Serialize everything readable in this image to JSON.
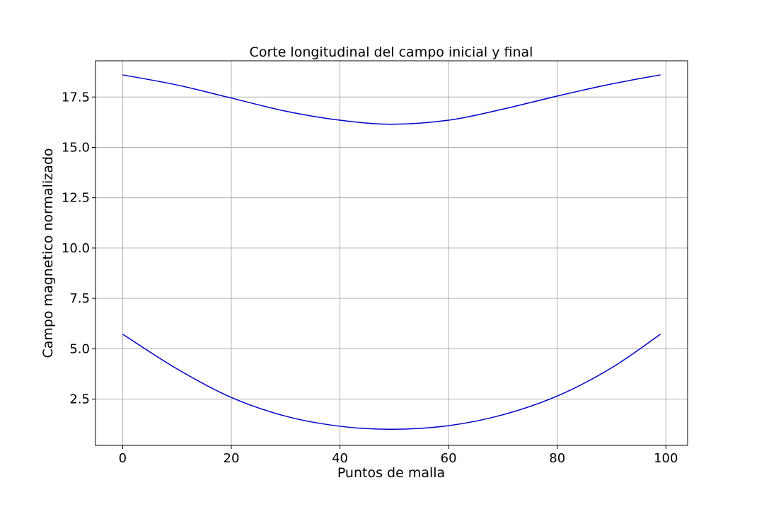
{
  "chart_data": {
    "type": "line",
    "title": "Corte longitudinal del campo inicial y final",
    "xlabel": "Puntos de malla",
    "ylabel": "Campo magnetico normalizado",
    "xlim": [
      -5,
      104
    ],
    "ylim": [
      0.2,
      19.3
    ],
    "xticks": [
      0,
      20,
      40,
      60,
      80,
      100
    ],
    "xtick_labels": [
      "0",
      "20",
      "40",
      "60",
      "80",
      "100"
    ],
    "yticks": [
      2.5,
      5.0,
      7.5,
      10.0,
      12.5,
      15.0,
      17.5
    ],
    "ytick_labels": [
      "2.5",
      "5.0",
      "7.5",
      "10.0",
      "12.5",
      "15.0",
      "17.5"
    ],
    "grid": true,
    "legend": "none",
    "line_color": "#0000cc",
    "series": [
      {
        "x": [
          0,
          10,
          20,
          30,
          40,
          49.5,
          60,
          70,
          80,
          90,
          99
        ],
        "values": [
          18.6,
          18.1,
          17.45,
          16.8,
          16.35,
          16.15,
          16.35,
          16.9,
          17.55,
          18.15,
          18.6
        ]
      },
      {
        "x": [
          0,
          10,
          20,
          30,
          40,
          49.5,
          60,
          70,
          80,
          90,
          99
        ],
        "values": [
          5.72,
          4.0,
          2.58,
          1.65,
          1.15,
          1.0,
          1.18,
          1.72,
          2.65,
          4.05,
          5.72
        ]
      }
    ]
  }
}
